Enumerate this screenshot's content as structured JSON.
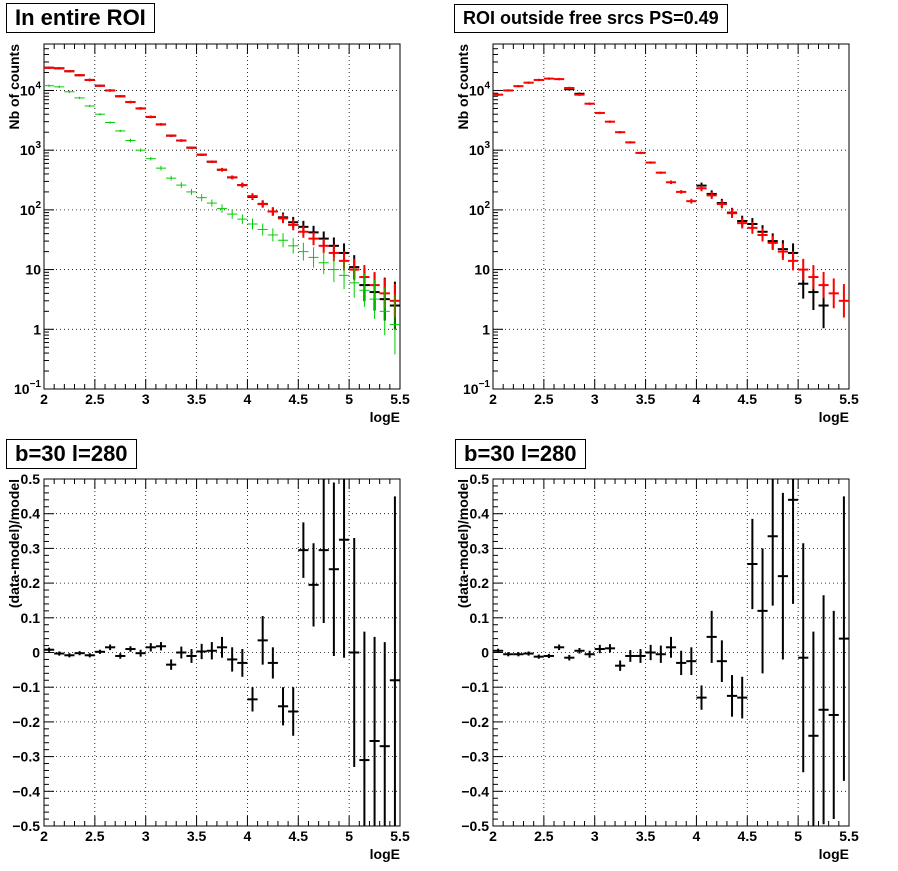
{
  "panels": [
    {
      "title": "In entire ROI",
      "xlabel": "logE",
      "ylabel": "Nb of counts"
    },
    {
      "title": "ROI outside free srcs PS=0.49",
      "xlabel": "logE",
      "ylabel": "Nb of counts"
    },
    {
      "title": "b=30 l=280",
      "xlabel": "logE",
      "ylabel": "(data-model)/model"
    },
    {
      "title": "b=30 l=280",
      "xlabel": "logE",
      "ylabel": "(data-model)/model"
    }
  ],
  "chart_data": [
    {
      "type": "scatter",
      "title": "In entire ROI",
      "xlabel": "logE",
      "ylabel": "Nb of counts",
      "xlim": [
        2,
        5.5
      ],
      "ylim": [
        0.1,
        60000
      ],
      "yscale": "log",
      "grid": true,
      "xticks": [
        "2",
        "2.5",
        "3",
        "3.5",
        "4",
        "4.5",
        "5",
        "5.5"
      ],
      "yticks": [
        "10^-1",
        "1",
        "10",
        "10^2",
        "10^3",
        "10^4"
      ],
      "series": [
        {
          "color": "#000000",
          "style": "errorbar",
          "x": [
            2.05,
            2.15,
            2.25,
            2.35,
            2.45,
            2.55,
            2.65,
            2.75,
            2.85,
            2.95,
            3.05,
            3.15,
            3.25,
            3.35,
            3.45,
            3.55,
            3.65,
            3.75,
            3.85,
            3.95,
            4.05,
            4.15,
            4.25,
            4.35,
            4.45,
            4.55,
            4.65,
            4.75,
            4.85,
            4.95,
            5.05,
            5.15,
            5.25,
            5.35,
            5.45
          ],
          "y": [
            24000,
            23500,
            21000,
            18000,
            15000,
            12000,
            10000,
            8000,
            6400,
            5000,
            3600,
            2700,
            1750,
            1450,
            1100,
            840,
            640,
            470,
            350,
            260,
            165,
            126,
            94,
            75,
            62,
            52,
            42,
            33,
            25,
            19,
            11,
            5.5,
            4.2,
            3.2,
            2.5
          ],
          "err": [
            0.02,
            0.02,
            0.02,
            0.02,
            0.02,
            0.02,
            0.02,
            0.02,
            0.02,
            0.02,
            0.02,
            0.02,
            0.02,
            0.02,
            0.02,
            0.02,
            0.02,
            0.03,
            0.03,
            0.04,
            0.05,
            0.06,
            0.07,
            0.08,
            0.09,
            0.1,
            0.11,
            0.12,
            0.14,
            0.16,
            0.2,
            0.27,
            0.31,
            0.36,
            0.4
          ]
        },
        {
          "color": "#0000ff",
          "style": "step",
          "x": [
            2.05,
            2.15,
            2.25,
            2.35,
            2.45,
            2.55,
            2.65,
            2.75,
            2.85,
            2.95,
            3.05,
            3.15,
            3.25,
            3.35,
            3.45,
            3.55,
            3.65,
            3.75,
            3.85,
            3.95,
            4.05,
            4.15,
            4.25,
            4.35,
            4.45,
            4.55,
            4.65,
            4.75,
            4.85,
            4.95,
            5.05,
            5.15,
            5.25,
            5.35,
            5.45
          ],
          "y": [
            24000,
            23500,
            21000,
            18000,
            15000,
            12000,
            10000,
            8000,
            6400,
            5000,
            3600,
            2700,
            1750,
            1450,
            1100,
            840,
            640,
            470,
            350,
            260,
            170,
            125,
            94,
            72,
            56,
            43,
            33,
            25,
            19,
            14,
            10,
            7.5,
            5.5,
            4,
            3
          ]
        },
        {
          "color": "#ff0000",
          "style": "errorbar",
          "x": [
            2.05,
            2.15,
            2.25,
            2.35,
            2.45,
            2.55,
            2.65,
            2.75,
            2.85,
            2.95,
            3.05,
            3.15,
            3.25,
            3.35,
            3.45,
            3.55,
            3.65,
            3.75,
            3.85,
            3.95,
            4.05,
            4.15,
            4.25,
            4.35,
            4.45,
            4.55,
            4.65,
            4.75,
            4.85,
            4.95,
            5.05,
            5.15,
            5.25,
            5.35,
            5.45
          ],
          "y": [
            24000,
            23500,
            21000,
            18000,
            15000,
            12000,
            10000,
            8000,
            6400,
            5000,
            3600,
            2700,
            1750,
            1450,
            1100,
            840,
            640,
            470,
            350,
            260,
            170,
            125,
            94,
            72,
            56,
            43,
            33,
            25,
            19,
            14,
            10,
            7.5,
            5.5,
            4,
            3
          ],
          "err": [
            0.02,
            0.02,
            0.02,
            0.02,
            0.02,
            0.02,
            0.02,
            0.02,
            0.02,
            0.02,
            0.02,
            0.02,
            0.02,
            0.02,
            0.02,
            0.02,
            0.02,
            0.03,
            0.03,
            0.04,
            0.05,
            0.06,
            0.07,
            0.08,
            0.09,
            0.1,
            0.11,
            0.12,
            0.14,
            0.16,
            0.18,
            0.2,
            0.22,
            0.25,
            0.28
          ]
        },
        {
          "color": "#00cc00",
          "style": "errorbar",
          "x": [
            2.05,
            2.15,
            2.25,
            2.35,
            2.45,
            2.55,
            2.65,
            2.75,
            2.85,
            2.95,
            3.05,
            3.15,
            3.25,
            3.35,
            3.45,
            3.55,
            3.65,
            3.75,
            3.85,
            3.95,
            4.05,
            4.15,
            4.25,
            4.35,
            4.45,
            4.55,
            4.65,
            4.75,
            4.85,
            4.95,
            5.05,
            5.15,
            5.25,
            5.35,
            5.45
          ],
          "y": [
            12000,
            11500,
            9500,
            7500,
            5500,
            4000,
            2900,
            2100,
            1450,
            1000,
            720,
            500,
            340,
            260,
            200,
            160,
            130,
            105,
            85,
            70,
            58,
            47,
            38,
            31,
            25,
            20,
            16,
            13,
            10,
            8,
            6,
            4.5,
            3.2,
            2,
            1.2
          ],
          "err": [
            0.02,
            0.02,
            0.02,
            0.02,
            0.02,
            0.02,
            0.02,
            0.02,
            0.03,
            0.03,
            0.03,
            0.04,
            0.04,
            0.05,
            0.05,
            0.06,
            0.06,
            0.07,
            0.08,
            0.08,
            0.09,
            0.1,
            0.11,
            0.12,
            0.13,
            0.15,
            0.17,
            0.19,
            0.21,
            0.23,
            0.25,
            0.28,
            0.33,
            0.4,
            0.5
          ]
        }
      ]
    },
    {
      "type": "scatter",
      "title": "ROI outside free srcs PS=0.49",
      "xlabel": "logE",
      "ylabel": "Nb of counts",
      "xlim": [
        2,
        5.5
      ],
      "ylim": [
        0.1,
        60000
      ],
      "yscale": "log",
      "grid": true,
      "xticks": [
        "2",
        "2.5",
        "3",
        "3.5",
        "4",
        "4.5",
        "5",
        "5.5"
      ],
      "yticks": [
        "10^-1",
        "1",
        "10",
        "10^2",
        "10^3",
        "10^4"
      ],
      "series": [
        {
          "color": "#000000",
          "style": "errorbar",
          "x": [
            2.75,
            2.85,
            4.05,
            4.15,
            4.25,
            4.35,
            4.45,
            4.55,
            4.65,
            4.75,
            4.85,
            4.95,
            5.05,
            5.15,
            5.25
          ],
          "y": [
            10500,
            8800,
            255,
            185,
            130,
            90,
            65,
            58,
            43,
            30,
            22,
            19,
            5.8,
            4.2,
            2.5
          ],
          "err": [
            0.02,
            0.02,
            0.05,
            0.06,
            0.07,
            0.08,
            0.09,
            0.1,
            0.11,
            0.13,
            0.15,
            0.16,
            0.25,
            0.3,
            0.38
          ]
        },
        {
          "color": "#ff0000",
          "style": "errorbar",
          "x": [
            2.05,
            2.15,
            2.25,
            2.35,
            2.45,
            2.55,
            2.65,
            2.75,
            2.85,
            2.95,
            3.05,
            3.15,
            3.25,
            3.35,
            3.45,
            3.55,
            3.65,
            3.75,
            3.85,
            3.95,
            4.05,
            4.15,
            4.25,
            4.35,
            4.45,
            4.55,
            4.65,
            4.75,
            4.85,
            4.95,
            5.05,
            5.15,
            5.25,
            5.35,
            5.45
          ],
          "y": [
            8500,
            10000,
            11800,
            13500,
            15000,
            15800,
            15500,
            11000,
            8500,
            6000,
            4200,
            3000,
            2000,
            1350,
            900,
            620,
            420,
            290,
            200,
            140,
            230,
            175,
            125,
            88,
            60,
            50,
            38,
            28,
            20,
            14,
            10,
            7.5,
            5.5,
            4,
            3
          ],
          "err": [
            0.02,
            0.02,
            0.02,
            0.02,
            0.02,
            0.02,
            0.02,
            0.02,
            0.02,
            0.02,
            0.02,
            0.02,
            0.02,
            0.02,
            0.02,
            0.02,
            0.02,
            0.03,
            0.03,
            0.04,
            0.05,
            0.06,
            0.07,
            0.08,
            0.09,
            0.1,
            0.11,
            0.12,
            0.14,
            0.16,
            0.18,
            0.2,
            0.22,
            0.25,
            0.28
          ]
        }
      ]
    },
    {
      "type": "scatter",
      "title": "b=30 l=280",
      "xlabel": "logE",
      "ylabel": "(data-model)/model",
      "xlim": [
        2,
        5.5
      ],
      "ylim": [
        -0.5,
        0.5
      ],
      "grid": true,
      "xticks": [
        "2",
        "2.5",
        "3",
        "3.5",
        "4",
        "4.5",
        "5",
        "5.5"
      ],
      "yticks": [
        "-0.5",
        "-0.4",
        "-0.3",
        "-0.2",
        "-0.1",
        "0",
        "0.1",
        "0.2",
        "0.3",
        "0.4",
        "0.5"
      ],
      "series": [
        {
          "color": "#000000",
          "style": "errorbar",
          "x": [
            2.05,
            2.15,
            2.25,
            2.35,
            2.45,
            2.55,
            2.65,
            2.75,
            2.85,
            2.95,
            3.05,
            3.15,
            3.25,
            3.35,
            3.45,
            3.55,
            3.65,
            3.75,
            3.85,
            3.95,
            4.05,
            4.15,
            4.25,
            4.35,
            4.45,
            4.55,
            4.65,
            4.75,
            4.85,
            4.95,
            5.05,
            5.15,
            5.25,
            5.35,
            5.45
          ],
          "y": [
            0.008,
            -0.003,
            -0.008,
            -0.002,
            -0.008,
            0.002,
            0.015,
            -0.01,
            0.01,
            -0.002,
            0.015,
            0.018,
            -0.035,
            0.0,
            -0.01,
            0.003,
            0.005,
            0.015,
            -0.02,
            -0.03,
            -0.135,
            0.035,
            -0.03,
            -0.155,
            -0.17,
            0.295,
            0.195,
            0.295,
            0.24,
            0.325,
            0.0,
            -0.31,
            -0.255,
            -0.27,
            -0.08
          ],
          "err": [
            0.006,
            0.006,
            0.006,
            0.006,
            0.006,
            0.006,
            0.008,
            0.008,
            0.008,
            0.01,
            0.012,
            0.012,
            0.015,
            0.017,
            0.02,
            0.022,
            0.025,
            0.03,
            0.035,
            0.04,
            0.035,
            0.07,
            0.045,
            0.055,
            0.07,
            0.08,
            0.12,
            0.21,
            0.25,
            0.34,
            0.33,
            0.37,
            0.3,
            0.3,
            0.53
          ]
        }
      ]
    },
    {
      "type": "scatter",
      "title": "b=30 l=280",
      "xlabel": "logE",
      "ylabel": "(data-model)/model",
      "xlim": [
        2,
        5.5
      ],
      "ylim": [
        -0.5,
        0.5
      ],
      "grid": true,
      "xticks": [
        "2",
        "2.5",
        "3",
        "3.5",
        "4",
        "4.5",
        "5",
        "5.5"
      ],
      "yticks": [
        "-0.5",
        "-0.4",
        "-0.3",
        "-0.2",
        "-0.1",
        "0",
        "0.1",
        "0.2",
        "0.3",
        "0.4",
        "0.5"
      ],
      "series": [
        {
          "color": "#000000",
          "style": "errorbar",
          "x": [
            2.05,
            2.15,
            2.25,
            2.35,
            2.45,
            2.55,
            2.65,
            2.75,
            2.85,
            2.95,
            3.05,
            3.15,
            3.25,
            3.35,
            3.45,
            3.55,
            3.65,
            3.75,
            3.85,
            3.95,
            4.05,
            4.15,
            4.25,
            4.35,
            4.45,
            4.55,
            4.65,
            4.75,
            4.85,
            4.95,
            5.05,
            5.15,
            5.25,
            5.35,
            5.45
          ],
          "y": [
            0.005,
            -0.005,
            -0.005,
            -0.003,
            -0.012,
            -0.01,
            0.015,
            -0.015,
            0.005,
            -0.005,
            0.01,
            0.012,
            -0.038,
            -0.01,
            -0.01,
            0.0,
            -0.005,
            0.015,
            -0.03,
            -0.025,
            -0.13,
            0.045,
            -0.025,
            -0.125,
            -0.13,
            0.255,
            0.12,
            0.335,
            0.22,
            0.44,
            -0.015,
            -0.24,
            -0.165,
            -0.18,
            0.04
          ],
          "err": [
            0.006,
            0.006,
            0.006,
            0.006,
            0.006,
            0.006,
            0.008,
            0.008,
            0.008,
            0.01,
            0.012,
            0.012,
            0.015,
            0.017,
            0.02,
            0.022,
            0.025,
            0.03,
            0.035,
            0.04,
            0.035,
            0.075,
            0.06,
            0.06,
            0.06,
            0.13,
            0.18,
            0.2,
            0.24,
            0.3,
            0.33,
            0.3,
            0.33,
            0.3,
            0.41
          ]
        }
      ]
    }
  ]
}
